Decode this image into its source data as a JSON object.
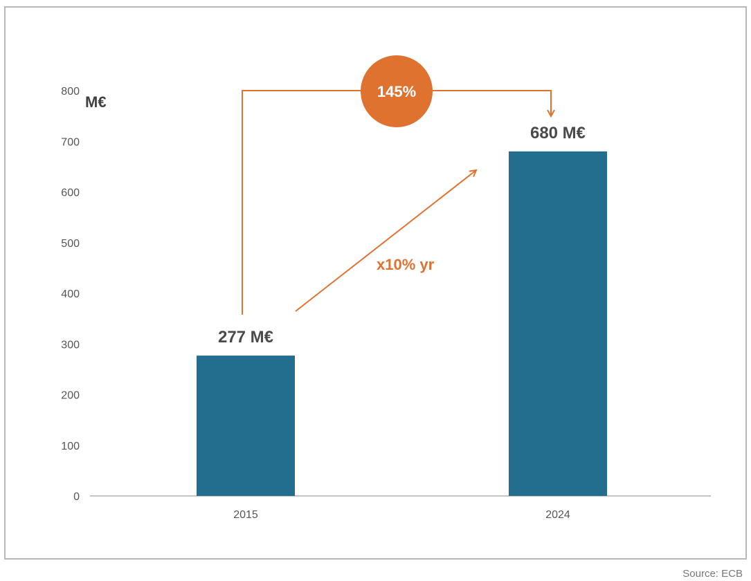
{
  "chart_data": {
    "type": "bar",
    "categories": [
      "2015",
      "2024"
    ],
    "values": [
      277,
      680
    ],
    "data_labels": [
      "277 M€",
      "680 M€"
    ],
    "unit_label": "M€",
    "yticks": [
      "0",
      "100",
      "200",
      "300",
      "400",
      "500",
      "600",
      "700",
      "800"
    ],
    "ylim": [
      0,
      800
    ],
    "grid": false,
    "title": "",
    "xlabel": "",
    "ylabel": "",
    "annotations": {
      "growth_total": "145%",
      "growth_rate": "x10% yr"
    }
  },
  "colors": {
    "bar": "#236e8e",
    "accent": "#e07230",
    "axis": "#b0b0b0",
    "frame": "#b8b8b8"
  },
  "source": "Source: ECB"
}
